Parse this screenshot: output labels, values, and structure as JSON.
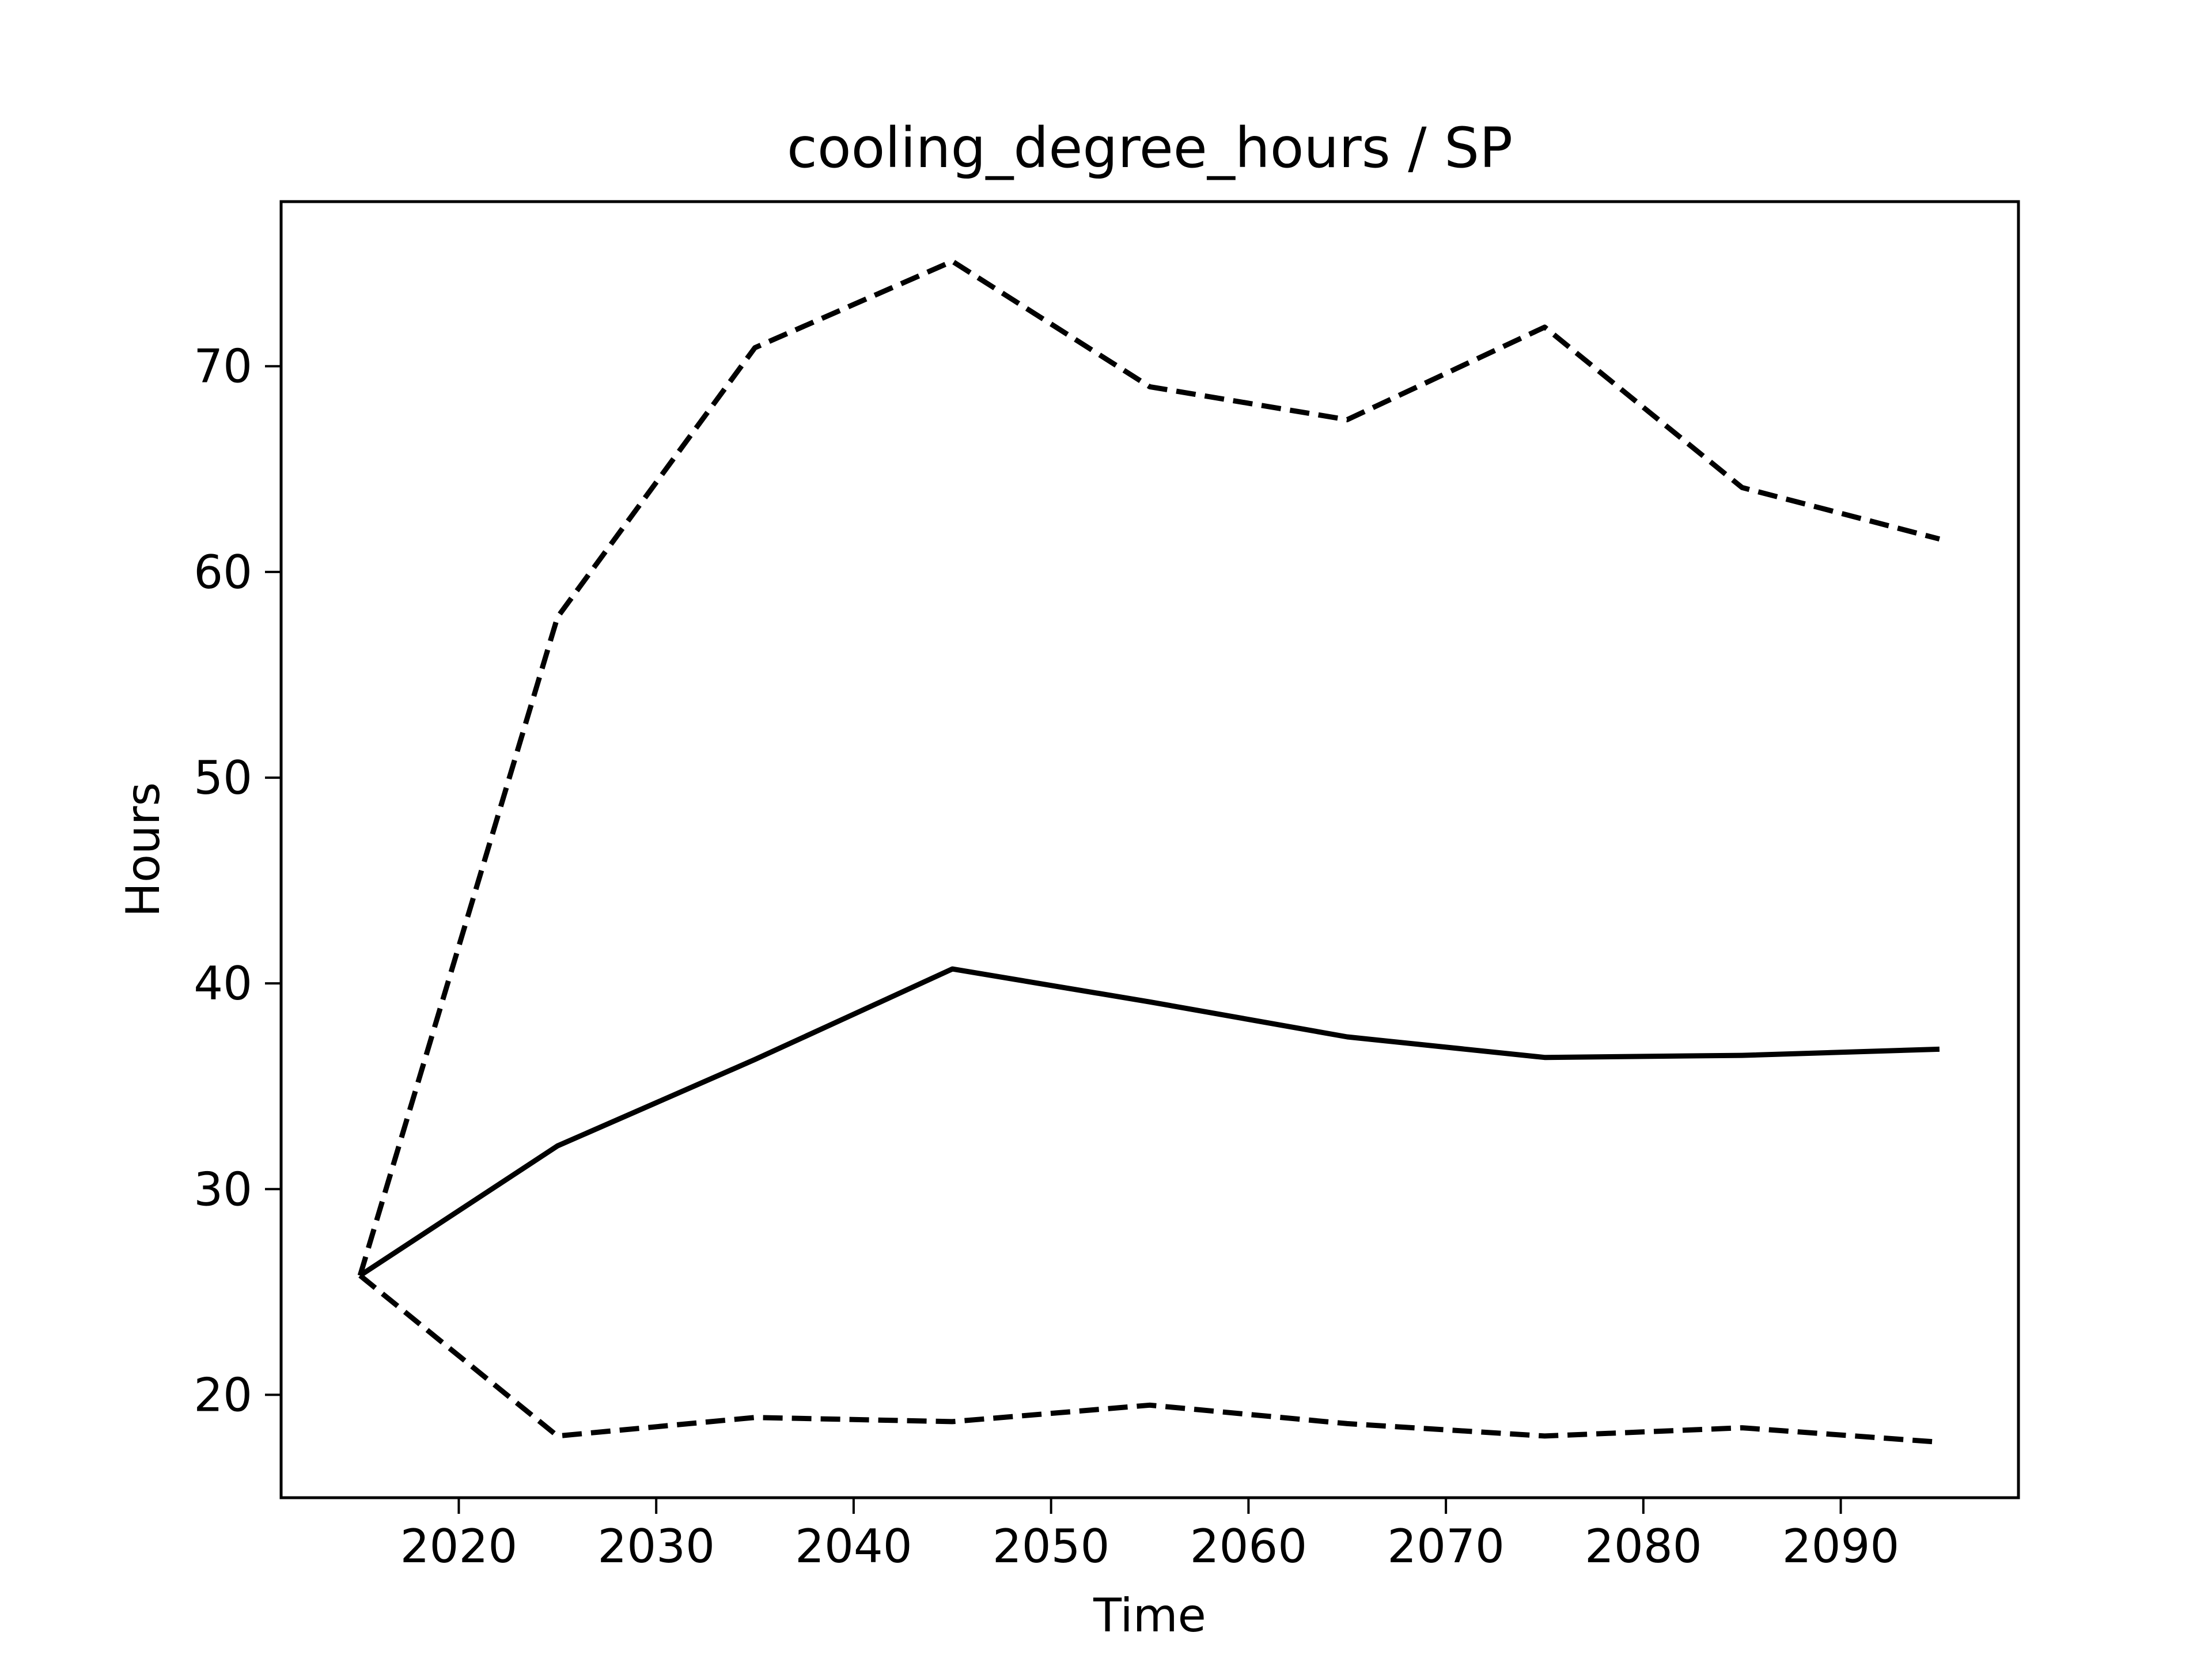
{
  "chart_data": {
    "type": "line",
    "title": "cooling_degree_hours / SP",
    "xlabel": "Time",
    "ylabel": "Hours",
    "xlim": [
      2011,
      2099
    ],
    "ylim": [
      15,
      78
    ],
    "xticks": [
      2020,
      2030,
      2040,
      2050,
      2060,
      2070,
      2080,
      2090
    ],
    "yticks": [
      20,
      30,
      40,
      50,
      60,
      70
    ],
    "x": [
      2015,
      2025,
      2035,
      2045,
      2055,
      2065,
      2075,
      2085,
      2095
    ],
    "series": [
      {
        "style": "solid",
        "color": "#000000",
        "values": [
          25.8,
          32.1,
          36.3,
          40.7,
          39.1,
          37.4,
          36.4,
          36.5,
          36.8
        ]
      },
      {
        "style": "dashed",
        "color": "#000000",
        "values": [
          25.8,
          57.8,
          70.9,
          75.1,
          69.0,
          67.4,
          71.9,
          64.1,
          61.6
        ]
      },
      {
        "style": "dashed",
        "color": "#000000",
        "values": [
          25.8,
          18.0,
          18.9,
          18.7,
          19.5,
          18.6,
          18.0,
          18.4,
          17.7
        ]
      }
    ],
    "grid": false,
    "legend": "none"
  }
}
